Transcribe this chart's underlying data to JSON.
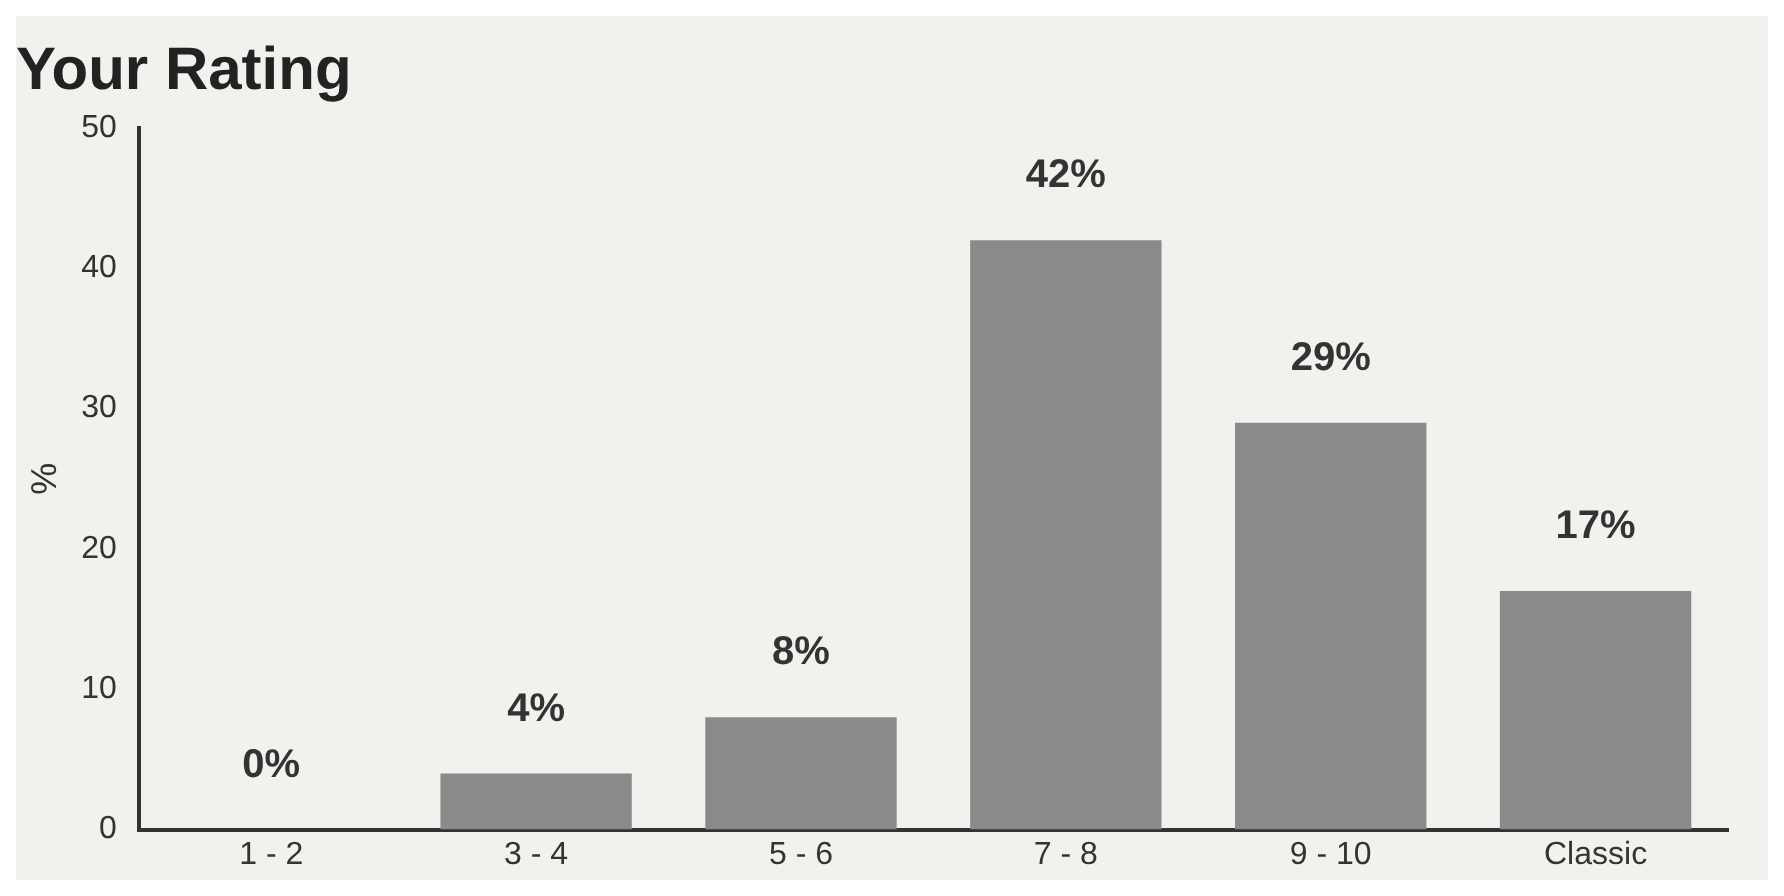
{
  "chart_data": {
    "type": "bar",
    "title": "Your Rating",
    "ylabel": "%",
    "categories": [
      "1 - 2",
      "3 - 4",
      "5 - 6",
      "7 - 8",
      "9 - 10",
      "Classic"
    ],
    "values": [
      0,
      4,
      8,
      42,
      29,
      17
    ],
    "value_labels": [
      "0%",
      "4%",
      "8%",
      "42%",
      "29%",
      "17%"
    ],
    "color": "#8a8a8a",
    "ylim": [
      0,
      50
    ],
    "yticks": [
      0,
      10,
      20,
      30,
      40,
      50
    ],
    "grid": false,
    "legend": false
  }
}
